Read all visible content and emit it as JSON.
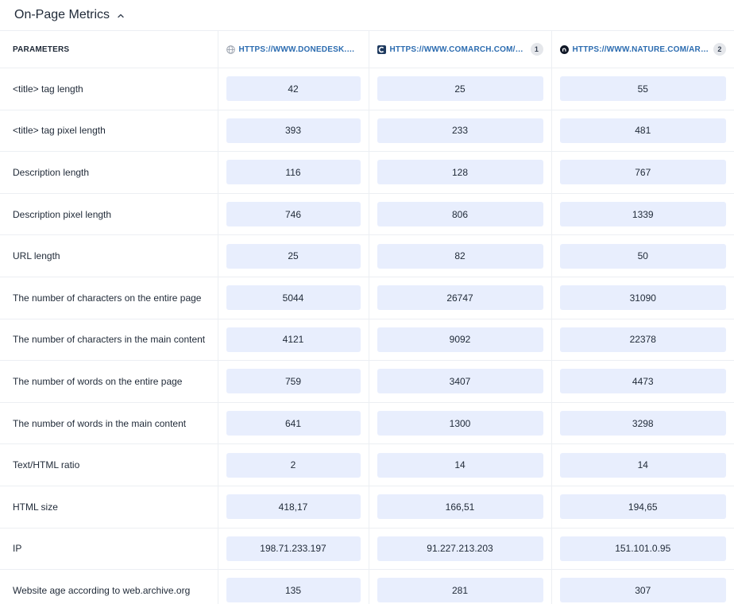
{
  "header": {
    "title": "On-Page Metrics",
    "collapse_icon": "chevron-up-icon"
  },
  "table": {
    "param_header": "PARAMETERS",
    "columns": [
      {
        "url": "HTTPS://WWW.DONEDESK.COM/",
        "icon": "globe-icon",
        "badge": ""
      },
      {
        "url": "HTTPS://WWW.COMARCH.COM/HE...",
        "icon": "comarch-logo-icon",
        "badge": "1"
      },
      {
        "url": "HTTPS://WWW.NATURE.COM/ARTI...",
        "icon": "nature-logo-icon",
        "badge": "2"
      }
    ],
    "rows": [
      {
        "label": "<title> tag length",
        "values": [
          "42",
          "25",
          "55"
        ]
      },
      {
        "label": "<title> tag pixel length",
        "values": [
          "393",
          "233",
          "481"
        ]
      },
      {
        "label": "Description length",
        "values": [
          "116",
          "128",
          "767"
        ]
      },
      {
        "label": "Description pixel length",
        "values": [
          "746",
          "806",
          "1339"
        ]
      },
      {
        "label": "URL length",
        "values": [
          "25",
          "82",
          "50"
        ]
      },
      {
        "label": "The number of characters on the entire page",
        "values": [
          "5044",
          "26747",
          "31090"
        ]
      },
      {
        "label": "The number of characters in the main content",
        "values": [
          "4121",
          "9092",
          "22378"
        ]
      },
      {
        "label": "The number of words on the entire page",
        "values": [
          "759",
          "3407",
          "4473"
        ]
      },
      {
        "label": "The number of words in the main content",
        "values": [
          "641",
          "1300",
          "3298"
        ]
      },
      {
        "label": "Text/HTML ratio",
        "values": [
          "2",
          "14",
          "14"
        ]
      },
      {
        "label": "HTML size",
        "values": [
          "418,17",
          "166,51",
          "194,65"
        ]
      },
      {
        "label": "IP",
        "values": [
          "198.71.233.197",
          "91.227.213.203",
          "151.101.0.95"
        ]
      },
      {
        "label": "Website age according to web.archive.org",
        "values": [
          "135",
          "281",
          "307"
        ]
      }
    ]
  },
  "colors": {
    "value_pill_bg": "#e8eefd",
    "url_link": "#2c6cb0",
    "grid_line": "#eceff3"
  }
}
